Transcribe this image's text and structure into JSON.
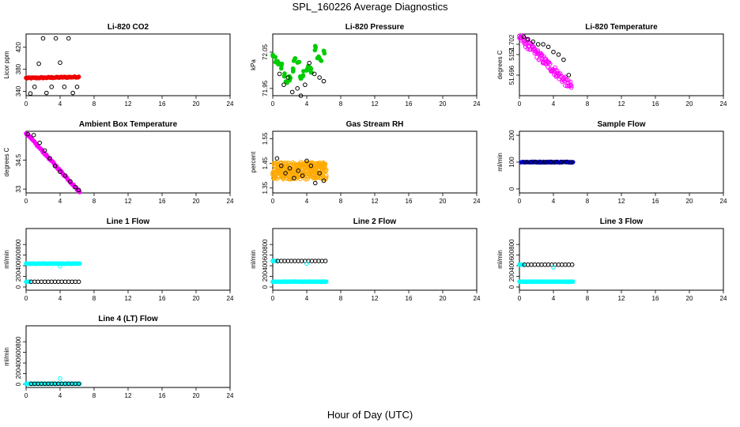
{
  "page": {
    "main_title": "SPL_160226  Average Diagnostics",
    "x_axis_title": "Hour of Day (UTC)"
  },
  "colors": {
    "black": "#000000",
    "red": "#ee0000",
    "green": "#00cc00",
    "magenta": "#ff00ff",
    "orange": "#ffaa00",
    "blue": "#0000cc",
    "cyan": "#00ffff"
  },
  "chart_data": [
    {
      "type": "scatter",
      "title": "Li-820 CO2",
      "ylabel": "Licor ppm",
      "xlim": [
        0,
        24
      ],
      "xticks": [
        0,
        4,
        8,
        12,
        16,
        20,
        24
      ],
      "ylim": [
        332,
        444
      ],
      "yticks": [
        340,
        380,
        420
      ],
      "series": [
        {
          "name": "avg",
          "color": "red",
          "filled": true,
          "from": 0,
          "to": 6.2,
          "step": 0.1,
          "y0": 364,
          "y1": 366,
          "jitter": 1
        },
        {
          "name": "samples",
          "color": "black",
          "filled": false,
          "x": [
            0.5,
            1,
            1.5,
            2,
            2.4,
            3,
            3.5,
            4,
            4.5,
            5,
            5.5,
            6
          ],
          "y": [
            336,
            348,
            390,
            436,
            337,
            348,
            436,
            392,
            348,
            436,
            337,
            348
          ]
        }
      ]
    },
    {
      "type": "scatter",
      "title": "Li-820 Pressure",
      "ylabel": "kPa",
      "xlim": [
        0,
        24
      ],
      "xticks": [
        0,
        4,
        8,
        12,
        16,
        20,
        24
      ],
      "ylim": [
        71.93,
        72.1
      ],
      "yticks": [
        71.95,
        72.05
      ],
      "series": [
        {
          "name": "avg",
          "color": "green",
          "filled": true,
          "x": [
            0,
            0.3,
            0.6,
            1,
            1.3,
            1.6,
            2,
            2.3,
            2.6,
            3,
            3.3,
            3.6,
            4,
            4.3,
            4.6,
            5,
            5.3,
            5.6,
            6
          ],
          "y": [
            72.04,
            72.03,
            72.02,
            72.01,
            71.99,
            71.97,
            71.98,
            72.0,
            72.03,
            72.02,
            71.98,
            71.99,
            72.0,
            72.01,
            72.0,
            72.06,
            72.04,
            72.03,
            72.05
          ],
          "jitter": 0.008,
          "dup": 3
        },
        {
          "name": "samples",
          "color": "black",
          "filled": false,
          "x": [
            0.8,
            1.3,
            1.8,
            2.3,
            2.9,
            3.3,
            3.8,
            4.3,
            4.9,
            5.5,
            6
          ],
          "y": [
            71.99,
            71.96,
            71.98,
            71.94,
            71.95,
            71.93,
            71.96,
            72.02,
            71.99,
            71.98,
            71.97
          ]
        }
      ]
    },
    {
      "type": "scatter",
      "title": "Li-820 Temperature",
      "ylabel": "degrees C",
      "xlim": [
        0,
        24
      ],
      "xticks": [
        0,
        4,
        8,
        12,
        16,
        20,
        24
      ],
      "ylim": [
        51.692,
        51.704
      ],
      "yticks": [
        51.696,
        51.7,
        51.702
      ],
      "series": [
        {
          "name": "avg",
          "color": "magenta",
          "filled": false,
          "from": 0,
          "to": 6.2,
          "step": 0.12,
          "y0": 51.7035,
          "y1": 51.6935,
          "jitter": 0.0009,
          "dup": 2
        },
        {
          "name": "samples",
          "color": "black",
          "filled": false,
          "x": [
            0.5,
            1,
            1.6,
            2.2,
            2.8,
            3.4,
            4,
            4.6,
            5.2,
            5.8
          ],
          "y": [
            51.7035,
            51.703,
            51.7025,
            51.702,
            51.702,
            51.7015,
            51.7005,
            51.7,
            51.699,
            51.696
          ]
        }
      ]
    },
    {
      "type": "scatter",
      "title": "Ambient Box Temperature",
      "ylabel": "degrees C",
      "xlim": [
        0,
        24
      ],
      "xticks": [
        0,
        4,
        8,
        12,
        16,
        20,
        24
      ],
      "ylim": [
        32.8,
        36.0
      ],
      "yticks": [
        33.0,
        34.5
      ],
      "series": [
        {
          "name": "avg",
          "color": "magenta",
          "filled": true,
          "from": 0,
          "to": 6.3,
          "step": 0.1,
          "y0": 35.9,
          "y1": 32.85,
          "jitter": 0.04
        },
        {
          "name": "samples",
          "color": "black",
          "filled": false,
          "x": [
            0.2,
            0.9,
            1.6,
            2.2,
            2.8,
            3.4,
            4,
            4.6,
            5.2,
            5.8,
            6.2
          ],
          "y": [
            35.85,
            35.8,
            35.4,
            35.0,
            34.6,
            34.2,
            33.9,
            33.7,
            33.4,
            33.1,
            32.95
          ]
        }
      ]
    },
    {
      "type": "scatter",
      "title": "Gas Stream RH",
      "ylabel": "percent",
      "xlim": [
        0,
        24
      ],
      "xticks": [
        0,
        4,
        8,
        12,
        16,
        20,
        24
      ],
      "ylim": [
        1.33,
        1.58
      ],
      "yticks": [
        1.35,
        1.45,
        1.55
      ],
      "series": [
        {
          "name": "avg",
          "color": "orange",
          "filled": false,
          "from": 0,
          "to": 6.3,
          "step": 0.06,
          "y0": 1.42,
          "y1": 1.42,
          "jitter": 0.035,
          "dup": 3
        },
        {
          "name": "samples",
          "color": "black",
          "filled": false,
          "x": [
            0.5,
            1,
            1.5,
            2,
            2.5,
            3,
            3.5,
            4,
            4.5,
            5,
            5.5,
            6
          ],
          "y": [
            1.47,
            1.44,
            1.41,
            1.43,
            1.39,
            1.42,
            1.4,
            1.46,
            1.44,
            1.37,
            1.41,
            1.38
          ]
        }
      ]
    },
    {
      "type": "scatter",
      "title": "Sample Flow",
      "ylabel": "ml/min",
      "xlim": [
        0,
        24
      ],
      "xticks": [
        0,
        4,
        8,
        12,
        16,
        20,
        24
      ],
      "ylim": [
        -15,
        215
      ],
      "yticks": [
        0,
        100,
        200
      ],
      "series": [
        {
          "name": "avg",
          "color": "blue",
          "filled": true,
          "from": 0.2,
          "to": 6.3,
          "step": 0.1,
          "y0": 100,
          "y1": 100,
          "jitter": 1.5
        },
        {
          "name": "samples",
          "color": "black",
          "filled": false,
          "x": [
            0.7,
            1.3,
            1.9,
            2.5,
            3.1,
            3.7,
            4.3,
            4.9,
            5.5,
            6.1
          ],
          "y": [
            100,
            100,
            100,
            100,
            100,
            100,
            100,
            100,
            100,
            100
          ]
        }
      ]
    },
    {
      "type": "scatter",
      "title": "Line 1 Flow",
      "ylabel": "ml/min",
      "xlim": [
        0,
        24
      ],
      "xticks": [
        0,
        4,
        8,
        12,
        16,
        20,
        24
      ],
      "ylim": [
        -60,
        1100
      ],
      "yticks": [
        0,
        200,
        400,
        600,
        800
      ],
      "series": [
        {
          "name": "high",
          "color": "cyan",
          "filled": true,
          "from": 0,
          "to": 6.3,
          "step": 0.1,
          "y0": 440,
          "y1": 440,
          "jitter": 4
        },
        {
          "name": "low",
          "color": "cyan",
          "filled": true,
          "from": 0,
          "to": 0.4,
          "step": 0.1,
          "y0": 100,
          "y1": 100,
          "jitter": 2
        },
        {
          "name": "samples",
          "color": "black",
          "filled": false,
          "from": 0.6,
          "to": 6.2,
          "step": 0.4,
          "y0": 100,
          "y1": 100,
          "jitter": 0
        },
        {
          "name": "outlier",
          "color": "cyan",
          "filled": false,
          "x": [
            4
          ],
          "y": [
            390
          ]
        }
      ]
    },
    {
      "type": "scatter",
      "title": "Line 2 Flow",
      "ylabel": "ml/min",
      "xlim": [
        0,
        24
      ],
      "xticks": [
        0,
        4,
        8,
        12,
        16,
        20,
        24
      ],
      "ylim": [
        -60,
        1100
      ],
      "yticks": [
        0,
        200,
        400,
        600,
        800
      ],
      "series": [
        {
          "name": "low",
          "color": "cyan",
          "filled": true,
          "from": 0,
          "to": 6.3,
          "step": 0.1,
          "y0": 100,
          "y1": 100,
          "jitter": 3
        },
        {
          "name": "high",
          "color": "cyan",
          "filled": true,
          "from": 0,
          "to": 0.4,
          "step": 0.1,
          "y0": 490,
          "y1": 490,
          "jitter": 2
        },
        {
          "name": "samples",
          "color": "black",
          "filled": false,
          "from": 0.6,
          "to": 6.2,
          "step": 0.4,
          "y0": 490,
          "y1": 490,
          "jitter": 0
        },
        {
          "name": "outlier",
          "color": "cyan",
          "filled": false,
          "x": [
            4
          ],
          "y": [
            440
          ]
        }
      ]
    },
    {
      "type": "scatter",
      "title": "Line 3 Flow",
      "ylabel": "ml/min",
      "xlim": [
        0,
        24
      ],
      "xticks": [
        0,
        4,
        8,
        12,
        16,
        20,
        24
      ],
      "ylim": [
        -60,
        1100
      ],
      "yticks": [
        0,
        200,
        400,
        600,
        800
      ],
      "series": [
        {
          "name": "low",
          "color": "cyan",
          "filled": true,
          "from": 0,
          "to": 6.3,
          "step": 0.1,
          "y0": 100,
          "y1": 100,
          "jitter": 3
        },
        {
          "name": "high",
          "color": "cyan",
          "filled": true,
          "from": 0,
          "to": 0.4,
          "step": 0.1,
          "y0": 420,
          "y1": 420,
          "jitter": 2
        },
        {
          "name": "samples",
          "color": "black",
          "filled": false,
          "from": 0.6,
          "to": 6.2,
          "step": 0.4,
          "y0": 420,
          "y1": 420,
          "jitter": 0
        },
        {
          "name": "outlier",
          "color": "cyan",
          "filled": false,
          "x": [
            4
          ],
          "y": [
            370
          ]
        }
      ]
    },
    {
      "type": "scatter",
      "title": "Line 4 (LT) Flow",
      "ylabel": "ml/min",
      "xlim": [
        0,
        24
      ],
      "xticks": [
        0,
        4,
        8,
        12,
        16,
        20,
        24
      ],
      "ylim": [
        -60,
        1100
      ],
      "yticks": [
        0,
        200,
        400,
        600,
        800
      ],
      "series": [
        {
          "name": "low",
          "color": "cyan",
          "filled": true,
          "from": 0,
          "to": 6.3,
          "step": 0.1,
          "y0": 10,
          "y1": 10,
          "jitter": 2
        },
        {
          "name": "samples",
          "color": "black",
          "filled": false,
          "from": 0.6,
          "to": 6.2,
          "step": 0.4,
          "y0": 10,
          "y1": 10,
          "jitter": 0
        },
        {
          "name": "outlier",
          "color": "cyan",
          "filled": false,
          "x": [
            4
          ],
          "y": [
            110
          ]
        }
      ]
    }
  ]
}
